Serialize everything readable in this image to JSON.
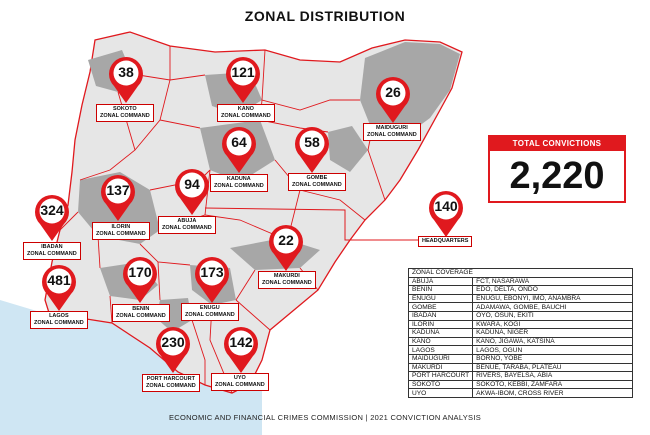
{
  "title": "ZONAL DISTRIBUTION",
  "colors": {
    "accent": "#e0191e",
    "map_light": "#e6e6e6",
    "map_dark": "#a7a7a7",
    "water": "#cfe6f3"
  },
  "zones": [
    {
      "id": "sokoto",
      "count": "38",
      "label_line1": "SOKOTO",
      "label_line2": "ZONAL COMMAND"
    },
    {
      "id": "kano",
      "count": "121",
      "label_line1": "KANO",
      "label_line2": "ZONAL COMMAND"
    },
    {
      "id": "maiduguri",
      "count": "26",
      "label_line1": "MAIDUGURI",
      "label_line2": "ZONAL COMMAND"
    },
    {
      "id": "kaduna",
      "count": "64",
      "label_line1": "KADUNA",
      "label_line2": "ZONAL COMMAND"
    },
    {
      "id": "gombe",
      "count": "58",
      "label_line1": "GOMBE",
      "label_line2": "ZONAL COMMAND"
    },
    {
      "id": "ilorin",
      "count": "137",
      "label_line1": "ILORIN",
      "label_line2": "ZONAL COMMAND"
    },
    {
      "id": "abuja",
      "count": "94",
      "label_line1": "ABUJA",
      "label_line2": "ZONAL COMMAND"
    },
    {
      "id": "ibadan",
      "count": "324",
      "label_line1": "IBADAN",
      "label_line2": "ZONAL COMMAND"
    },
    {
      "id": "headquarters",
      "count": "140",
      "label_line1": "HEADQUARTERS",
      "label_line2": ""
    },
    {
      "id": "makurdi",
      "count": "22",
      "label_line1": "MAKURDI",
      "label_line2": "ZONAL COMMAND"
    },
    {
      "id": "lagos",
      "count": "481",
      "label_line1": "LAGOS",
      "label_line2": "ZONAL COMMAND"
    },
    {
      "id": "benin",
      "count": "170",
      "label_line1": "BENIN",
      "label_line2": "ZONAL COMMAND"
    },
    {
      "id": "enugu",
      "count": "173",
      "label_line1": "ENUGU",
      "label_line2": "ZONAL COMMAND"
    },
    {
      "id": "port_harcourt",
      "count": "230",
      "label_line1": "PORT HARCOURT",
      "label_line2": "ZONAL COMMAND"
    },
    {
      "id": "uyo",
      "count": "142",
      "label_line1": "UYO",
      "label_line2": "ZONAL COMMAND"
    }
  ],
  "total": {
    "title": "TOTAL CONVICTIONS",
    "value": "2,220"
  },
  "coverage": {
    "header": "ZONAL COVERAGE",
    "rows": [
      {
        "zone": "ABUJA",
        "states": "FCT, NASARAWA"
      },
      {
        "zone": "BENIN",
        "states": "EDO, DELTA, ONDO"
      },
      {
        "zone": "ENUGU",
        "states": "ENUGU, EBONYI, IMO, ANAMBRA"
      },
      {
        "zone": "GOMBE",
        "states": "ADAMAWA, GOMBE, BAUCHI"
      },
      {
        "zone": "IBADAN",
        "states": "OYO, OSUN, EKITI"
      },
      {
        "zone": "ILORIN",
        "states": "KWARA, KOGI"
      },
      {
        "zone": "KADUNA",
        "states": "KADUNA, NIGER"
      },
      {
        "zone": "KANO",
        "states": "KANO, JIGAWA, KATSINA"
      },
      {
        "zone": "LAGOS",
        "states": "LAGOS, OGUN"
      },
      {
        "zone": "MAIDUGURI",
        "states": "BORNO, YOBE"
      },
      {
        "zone": "MAKURDI",
        "states": "BENUE, TARABA, PLATEAU"
      },
      {
        "zone": "PORT HARCOURT",
        "states": "RIVERS, BAYELSA, ABIA"
      },
      {
        "zone": "SOKOTO",
        "states": "SOKOTO, KEBBI, ZAMFARA"
      },
      {
        "zone": "UYO",
        "states": "AKWA-IBOM, CROSS RIVER"
      }
    ]
  },
  "footer": "ECONOMIC AND FINANCIAL CRIMES COMMISSION | 2021 CONVICTION ANALYSIS"
}
